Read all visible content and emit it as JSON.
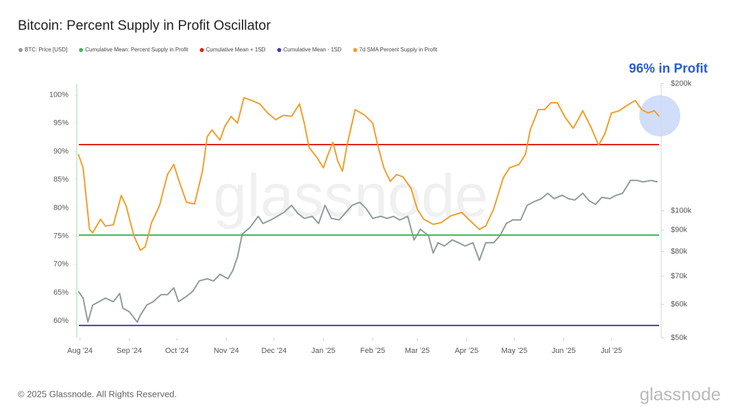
{
  "chart_data": {
    "type": "line",
    "title": "Bitcoin: Percent Supply in Profit Oscillator",
    "annotation": "96% in Profit",
    "watermark": "glassnode",
    "footer": "© 2025 Glassnode. All Rights Reserved.",
    "logo": "glassnode",
    "xlim": [
      -2,
      364
    ],
    "xticks": [
      {
        "value": 0,
        "label": "Aug '24"
      },
      {
        "value": 31,
        "label": "Sep '24"
      },
      {
        "value": 61,
        "label": "Oct '24"
      },
      {
        "value": 92,
        "label": "Nov '24"
      },
      {
        "value": 122,
        "label": "Dec '24"
      },
      {
        "value": 153,
        "label": "Jan '25"
      },
      {
        "value": 184,
        "label": "Feb '25"
      },
      {
        "value": 212,
        "label": "Mar '25"
      },
      {
        "value": 243,
        "label": "Apr '25"
      },
      {
        "value": 273,
        "label": "May '25"
      },
      {
        "value": 304,
        "label": "Jun '25"
      },
      {
        "value": 334,
        "label": "Jul '25"
      }
    ],
    "ylim": [
      57,
      102
    ],
    "yticks": [
      {
        "value": 60,
        "label": "60%"
      },
      {
        "value": 65,
        "label": "65%"
      },
      {
        "value": 70,
        "label": "70%"
      },
      {
        "value": 75,
        "label": "75%"
      },
      {
        "value": 80,
        "label": "80%"
      },
      {
        "value": 85,
        "label": "85%"
      },
      {
        "value": 90,
        "label": "90%"
      },
      {
        "value": 95,
        "label": "95%"
      },
      {
        "value": 100,
        "label": "100%"
      }
    ],
    "y2lim": [
      50000,
      200000
    ],
    "y2log": true,
    "y2ticks": [
      {
        "value": 50000,
        "label": "$50k"
      },
      {
        "value": 60000,
        "label": "$60k"
      },
      {
        "value": 70000,
        "label": "$70k"
      },
      {
        "value": 80000,
        "label": "$80k"
      },
      {
        "value": 90000,
        "label": "$90k"
      },
      {
        "value": 100000,
        "label": "$100k"
      },
      {
        "value": 200000,
        "label": "$200k"
      }
    ],
    "grid": false,
    "legend": "top",
    "series": [
      {
        "name": "BTC: Price [USD]",
        "color": "#8c9a9a",
        "axis": "y2",
        "x": [
          -1,
          2,
          5,
          8,
          12,
          16,
          21,
          25,
          27,
          31,
          36,
          38,
          42,
          46,
          51,
          55,
          59,
          62,
          67,
          71,
          75,
          80,
          84,
          88,
          93,
          96,
          99,
          102,
          107,
          112,
          115,
          120,
          124,
          128,
          133,
          137,
          141,
          146,
          150,
          154,
          158,
          163,
          167,
          171,
          176,
          180,
          184,
          189,
          193,
          197,
          201,
          206,
          210,
          214,
          219,
          222,
          225,
          229,
          234,
          238,
          242,
          247,
          251,
          255,
          260,
          264,
          268,
          272,
          277,
          281,
          285,
          290,
          294,
          298,
          303,
          307,
          311,
          316,
          320,
          324,
          328,
          333,
          337,
          341,
          346,
          350,
          354,
          359,
          363
        ],
        "values": [
          64500,
          62100,
          54500,
          59800,
          60900,
          62100,
          60900,
          63700,
          58800,
          57700,
          54500,
          56600,
          59800,
          60900,
          63300,
          63300,
          65700,
          60900,
          62700,
          64500,
          68200,
          69000,
          68200,
          70700,
          69000,
          72100,
          77700,
          88000,
          91400,
          97000,
          93300,
          95100,
          97000,
          99000,
          103000,
          98500,
          95900,
          97000,
          93300,
          103000,
          95900,
          95100,
          99000,
          103000,
          104700,
          101000,
          95900,
          97000,
          95900,
          97000,
          95100,
          97000,
          85300,
          90400,
          87300,
          79400,
          84000,
          82500,
          85300,
          84000,
          82500,
          84000,
          76300,
          84000,
          84000,
          87300,
          93300,
          95100,
          95100,
          103000,
          104900,
          106800,
          110000,
          106800,
          108800,
          106800,
          106000,
          110000,
          105600,
          103500,
          107600,
          106800,
          108800,
          110000,
          118000,
          118000,
          117000,
          118000,
          117000
        ]
      },
      {
        "name": "Cumulative Mean: Percent Supply in Profit",
        "color": "#3dba5a",
        "value": 75.2
      },
      {
        "name": "Cumulative Mean + 1SD",
        "color": "#e3201b",
        "value": 91.2
      },
      {
        "name": "Cumulative Mean - 1SD",
        "color": "#4a3aa8",
        "value": 59.2
      },
      {
        "name": "7d SMA Percent Supply in Profit",
        "color": "#f39c26",
        "x": [
          -1,
          2,
          6,
          8,
          13,
          16,
          21,
          26,
          29,
          34,
          38,
          41,
          45,
          50,
          55,
          59,
          62,
          67,
          72,
          77,
          80,
          83,
          88,
          91,
          95,
          99,
          103,
          109,
          113,
          118,
          123,
          128,
          133,
          138,
          141,
          144,
          149,
          153,
          156,
          159,
          162,
          165,
          168,
          173,
          179,
          184,
          187,
          191,
          195,
          199,
          203,
          208,
          212,
          216,
          222,
          227,
          233,
          240,
          245,
          251,
          255,
          260,
          266,
          270,
          276,
          280,
          283,
          288,
          292,
          296,
          300,
          305,
          310,
          313,
          316,
          321,
          326,
          330,
          334,
          339,
          343,
          349,
          353,
          357,
          361,
          364
        ],
        "values": [
          89.5,
          87.1,
          76.2,
          75.6,
          78,
          76.8,
          77,
          82.2,
          80.4,
          75,
          72.5,
          73.1,
          77.4,
          80.4,
          85.9,
          87.7,
          85,
          81,
          80.7,
          86.5,
          92.6,
          93.8,
          92,
          94.4,
          96.2,
          95,
          99.5,
          98.9,
          98.4,
          96.8,
          95.6,
          96.4,
          96.2,
          98.4,
          95,
          90.7,
          88.9,
          87.1,
          89.5,
          91.6,
          88.3,
          86.5,
          91.3,
          97.4,
          96.4,
          95,
          91.3,
          87.1,
          84.7,
          85.9,
          85.5,
          83.5,
          79.8,
          78,
          77.1,
          77.4,
          78.6,
          79.2,
          77.8,
          76.2,
          76.8,
          79.8,
          85.3,
          87.1,
          87.7,
          89.5,
          93.8,
          97.4,
          97.4,
          98.6,
          98.6,
          96,
          94.1,
          95.6,
          97.2,
          94.4,
          91.1,
          93.2,
          96.8,
          97.2,
          98,
          99,
          97.4,
          96.8,
          97.2,
          96.2
        ]
      }
    ]
  }
}
